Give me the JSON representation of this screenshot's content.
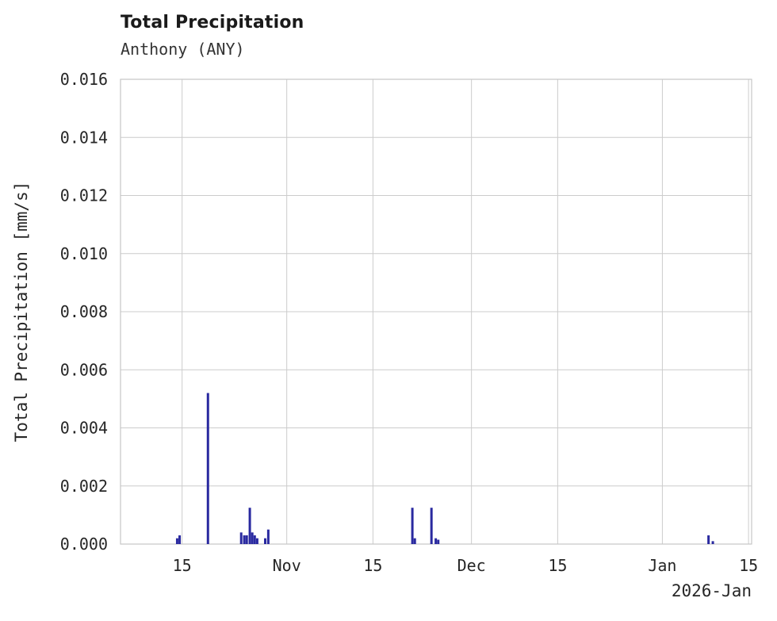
{
  "header": {
    "title": "Total Precipitation",
    "subtitle": "Anthony (ANY)"
  },
  "chart_data": {
    "type": "bar",
    "title": "Total Precipitation",
    "subtitle": "Anthony (ANY)",
    "station": "Anthony (ANY)",
    "ylabel": "Total Precipitation [mm/s]",
    "x_corner_label": "2026-Jan",
    "ylim": [
      0,
      0.016
    ],
    "yticks": [
      0,
      0.002,
      0.004,
      0.006,
      0.008,
      0.01,
      0.012,
      0.014,
      0.016
    ],
    "ytick_decimals": 3,
    "grid": true,
    "grid_color": "#cccccc",
    "border_color": "#c6c6c6",
    "tick_text_color": "#262626",
    "bar_color": "#2a2aa0",
    "x_domain_days": [
      0,
      102.5
    ],
    "x_domain_dates": [
      "2025-10-05",
      "2026-01-15"
    ],
    "xticks": [
      {
        "day": 10,
        "label": "15",
        "date": "2025-10-15"
      },
      {
        "day": 27,
        "label": "Nov",
        "date": "2025-11-01"
      },
      {
        "day": 41,
        "label": "15",
        "date": "2025-11-15"
      },
      {
        "day": 57,
        "label": "Dec",
        "date": "2025-12-01"
      },
      {
        "day": 71,
        "label": "15",
        "date": "2025-12-15"
      },
      {
        "day": 88,
        "label": "Jan",
        "date": "2026-01-01"
      },
      {
        "day": 102,
        "label": "15",
        "date": "2026-01-15"
      }
    ],
    "spikes": [
      {
        "date": "2025-10-14",
        "day": 9.2,
        "value": 0.0002
      },
      {
        "date": "2025-10-14",
        "day": 9.6,
        "value": 0.0003
      },
      {
        "date": "2025-10-19",
        "day": 14.2,
        "value": 0.0052
      },
      {
        "date": "2025-10-24",
        "day": 19.6,
        "value": 0.0004
      },
      {
        "date": "2025-10-25",
        "day": 20.1,
        "value": 0.0003
      },
      {
        "date": "2025-10-25",
        "day": 20.5,
        "value": 0.0003
      },
      {
        "date": "2025-10-26",
        "day": 21.0,
        "value": 0.00125
      },
      {
        "date": "2025-10-26",
        "day": 21.4,
        "value": 0.0004
      },
      {
        "date": "2025-10-27",
        "day": 21.8,
        "value": 0.0003
      },
      {
        "date": "2025-10-27",
        "day": 22.2,
        "value": 0.0002
      },
      {
        "date": "2025-10-28",
        "day": 23.5,
        "value": 0.0002
      },
      {
        "date": "2025-10-29",
        "day": 24.0,
        "value": 0.0005
      },
      {
        "date": "2025-11-21",
        "day": 47.4,
        "value": 0.00125
      },
      {
        "date": "2025-11-21",
        "day": 47.8,
        "value": 0.0002
      },
      {
        "date": "2025-11-24",
        "day": 50.5,
        "value": 0.00125
      },
      {
        "date": "2025-11-25",
        "day": 51.2,
        "value": 0.0002
      },
      {
        "date": "2025-11-25",
        "day": 51.6,
        "value": 0.00015
      },
      {
        "date": "2026-01-08",
        "day": 95.5,
        "value": 0.0003
      },
      {
        "date": "2026-01-09",
        "day": 96.2,
        "value": 0.0001
      }
    ]
  }
}
